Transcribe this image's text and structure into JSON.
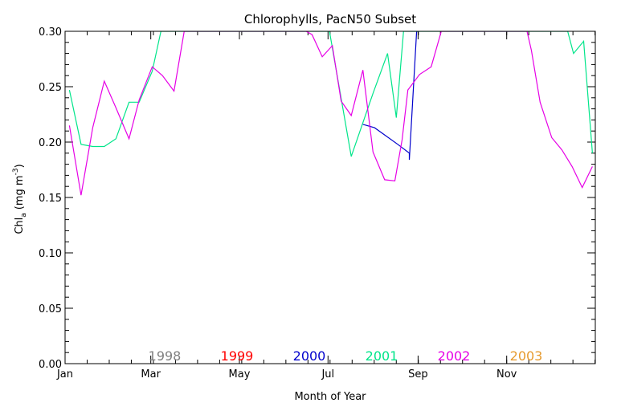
{
  "chart_data": {
    "type": "line",
    "title": "Chlorophylls, PacN50 Subset",
    "xlabel": "Month of Year",
    "ylabel_main": "Chl",
    "ylabel_sub": "a",
    "ylabel_unit_prefix": "(mg m",
    "ylabel_unit_exp": "-3",
    "ylabel_unit_suffix": ")",
    "xlim": [
      0,
      365
    ],
    "ylim": [
      0,
      0.3
    ],
    "x_ticks": [
      {
        "x": 0,
        "label": "Jan"
      },
      {
        "x": 59,
        "label": "Mar"
      },
      {
        "x": 120,
        "label": "May"
      },
      {
        "x": 181,
        "label": "Jul"
      },
      {
        "x": 243,
        "label": "Sep"
      },
      {
        "x": 304,
        "label": "Nov"
      }
    ],
    "x_minor_step_days": 15.2,
    "y_ticks": [
      {
        "y": 0.0,
        "label": "0.00"
      },
      {
        "y": 0.05,
        "label": "0.05"
      },
      {
        "y": 0.1,
        "label": "0.10"
      },
      {
        "y": 0.15,
        "label": "0.15"
      },
      {
        "y": 0.2,
        "label": "0.20"
      },
      {
        "y": 0.25,
        "label": "0.25"
      },
      {
        "y": 0.3,
        "label": "0.30"
      }
    ],
    "y_minor_step": 0.01,
    "legend_placement": "bottom, inside plot",
    "series": [
      {
        "name": "1998",
        "color": "#808080",
        "points": []
      },
      {
        "name": "1999",
        "color": "#ff0000",
        "points": []
      },
      {
        "name": "2000",
        "color": "#0000cc",
        "points": [
          [
            205,
            0.216
          ],
          [
            213,
            0.213
          ],
          [
            229,
            0.198
          ],
          [
            237,
            0.19
          ],
          [
            237,
            0.184
          ],
          [
            242,
            0.3
          ],
          [
            244,
            0.3
          ]
        ]
      },
      {
        "name": "2001",
        "color": "#00e58a",
        "points": [
          [
            3,
            0.247
          ],
          [
            11,
            0.198
          ],
          [
            19,
            0.196
          ],
          [
            27,
            0.196
          ],
          [
            35,
            0.203
          ],
          [
            44,
            0.236
          ],
          [
            51,
            0.236
          ],
          [
            60,
            0.264
          ],
          [
            66,
            0.3
          ],
          [
            182,
            0.3
          ],
          [
            197,
            0.187
          ],
          [
            212,
            0.244
          ],
          [
            222,
            0.28
          ],
          [
            228,
            0.222
          ],
          [
            233,
            0.3
          ],
          [
            346,
            0.3
          ],
          [
            350,
            0.28
          ],
          [
            357,
            0.291
          ],
          [
            363,
            0.19
          ]
        ]
      },
      {
        "name": "2002",
        "color": "#e600e6",
        "points": [
          [
            3,
            0.215
          ],
          [
            11,
            0.152
          ],
          [
            19,
            0.213
          ],
          [
            27,
            0.255
          ],
          [
            35,
            0.231
          ],
          [
            44,
            0.203
          ],
          [
            51,
            0.238
          ],
          [
            60,
            0.268
          ],
          [
            67,
            0.26
          ],
          [
            75,
            0.246
          ],
          [
            82,
            0.3
          ],
          [
            166,
            0.3
          ],
          [
            170,
            0.297
          ],
          [
            177,
            0.277
          ],
          [
            184,
            0.287
          ],
          [
            190,
            0.237
          ],
          [
            197,
            0.224
          ],
          [
            205,
            0.265
          ],
          [
            212,
            0.191
          ],
          [
            220,
            0.166
          ],
          [
            227,
            0.165
          ],
          [
            232,
            0.202
          ],
          [
            236,
            0.247
          ],
          [
            244,
            0.261
          ],
          [
            252,
            0.268
          ],
          [
            259,
            0.3
          ],
          [
            318,
            0.3
          ],
          [
            321,
            0.283
          ],
          [
            327,
            0.236
          ],
          [
            335,
            0.204
          ],
          [
            342,
            0.193
          ],
          [
            349,
            0.178
          ],
          [
            356,
            0.159
          ],
          [
            363,
            0.178
          ]
        ]
      },
      {
        "name": "2003",
        "color": "#e69a2e",
        "points": []
      }
    ]
  }
}
